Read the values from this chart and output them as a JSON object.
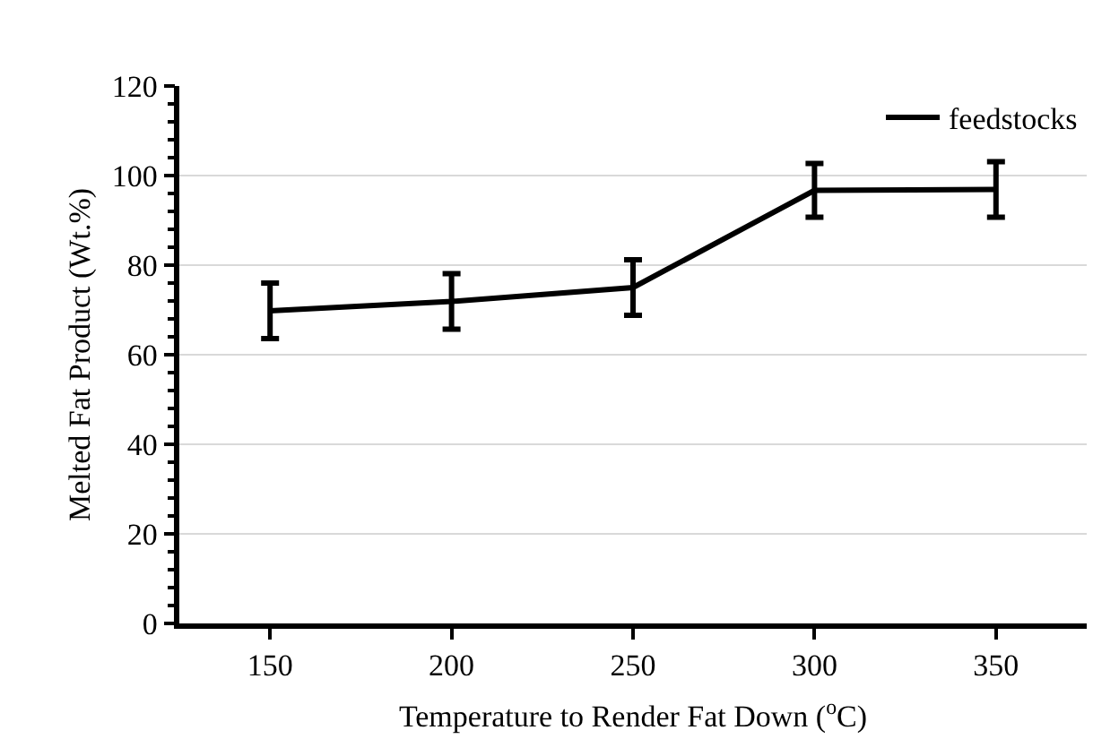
{
  "chart_data": {
    "type": "line",
    "xlabel": "Temperature to Render Fat Down ($^{o}$C)",
    "ylabel": "Melted Fat Product (Wt.%)",
    "categories": [
      "150",
      "200",
      "250",
      "300",
      "350"
    ],
    "series": [
      {
        "name": "feedstocks",
        "color": "#000000",
        "values": [
          69.8,
          71.9,
          75.0,
          96.7,
          96.9
        ],
        "errors": [
          6.2,
          6.2,
          6.2,
          6,
          6.2
        ]
      }
    ],
    "ylim": [
      0,
      120
    ],
    "yticks": [
      0,
      {
        "value": 4,
        "label": null
      },
      {
        "value": 8,
        "label": null
      },
      {
        "value": 12,
        "label": null
      },
      {
        "value": 16,
        "label": null
      },
      20,
      {
        "value": 24,
        "label": null
      },
      {
        "value": 28,
        "label": null
      },
      {
        "value": 32,
        "label": null
      },
      {
        "value": 36,
        "label": null
      },
      40,
      {
        "value": 44,
        "label": null
      },
      {
        "value": 48,
        "label": null
      },
      {
        "value": 52,
        "label": null
      },
      {
        "value": 56,
        "label": null
      },
      60,
      {
        "value": 64,
        "label": null
      },
      {
        "value": 68,
        "label": null
      },
      {
        "value": 72,
        "label": null
      },
      {
        "value": 76,
        "label": null
      },
      80,
      {
        "value": 84,
        "label": null
      },
      {
        "value": 88,
        "label": null
      },
      {
        "value": 92,
        "label": null
      },
      {
        "value": 96,
        "label": null
      },
      100,
      {
        "value": 104,
        "label": null
      },
      {
        "value": 108,
        "label": null
      },
      {
        "value": 112,
        "label": null
      },
      {
        "value": 116,
        "label": null
      },
      120
    ],
    "grid": "y",
    "legend": "top right",
    "marker": "none",
    "line_style": "solid"
  }
}
